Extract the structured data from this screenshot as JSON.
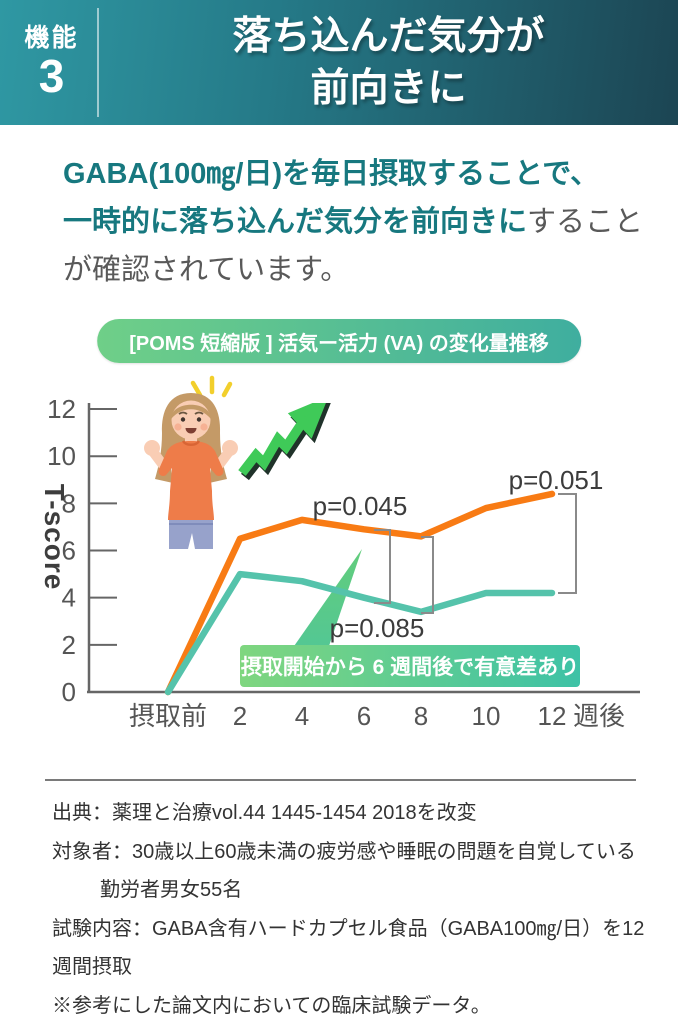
{
  "header": {
    "badge_label": "機能",
    "badge_number": "3",
    "title_line1": "落ち込んだ気分が",
    "title_line2": "前向きに"
  },
  "intro": {
    "line1": "GABA(100㎎/日)を毎日摂取することで、",
    "line2_highlight": "一時的に落ち込んだ気分を前向きに",
    "line2_rest": "すること",
    "line3": "が確認されています。"
  },
  "colors": {
    "accent_teal_text": "#17787f",
    "header_gradient_start": "#2f98a3",
    "header_gradient_end": "#1c4553",
    "orange_line": "#f87b14",
    "teal_line": "#55c3ab",
    "callout_gradient_start": "#7fd67f",
    "callout_gradient_end": "#3ec2a6"
  },
  "chart_data": {
    "type": "line",
    "title": "[POMS 短縮版 ] 活気ー活力 (VA) の変化量推移",
    "ylabel": "T-score",
    "ylim": [
      0,
      12
    ],
    "yticks": [
      0,
      2,
      4,
      6,
      8,
      10,
      12
    ],
    "x_tick_labels": [
      "摂取前",
      "2",
      "4",
      "6",
      "8",
      "10",
      "12"
    ],
    "x_axis_suffix": "週後",
    "grid": false,
    "legend": "none",
    "series": [
      {
        "name": "orange-line",
        "color": "#f87b14",
        "values": [
          0,
          6.5,
          7.3,
          6.9,
          6.6,
          7.8,
          8.4
        ]
      },
      {
        "name": "teal-line",
        "color": "#55c3ab",
        "values": [
          0,
          5.0,
          4.7,
          4.0,
          3.4,
          4.2,
          4.2
        ]
      }
    ],
    "annotations": [
      {
        "label": "p=0.045",
        "at_week": "6–8",
        "position": "above-orange"
      },
      {
        "label": "p=0.085",
        "at_week": "8",
        "position": "below-teal"
      },
      {
        "label": "p=0.051",
        "at_week": "12",
        "position": "right-bracket"
      }
    ],
    "callout": "摂取開始から 6 週間後で有意差あり"
  },
  "footer": {
    "lines": [
      "出典：薬理と治療vol.44 1445-1454 2018を改変",
      "対象者：30歳以上60歳未満の疲労感や睡眠の問題を自覚している",
      "勤労者男女55名",
      "試験内容：GABA含有ハードカプセル食品（GABA100㎎/日）を12週間摂取",
      "※参考にした論文内においての臨床試験データ。"
    ]
  }
}
